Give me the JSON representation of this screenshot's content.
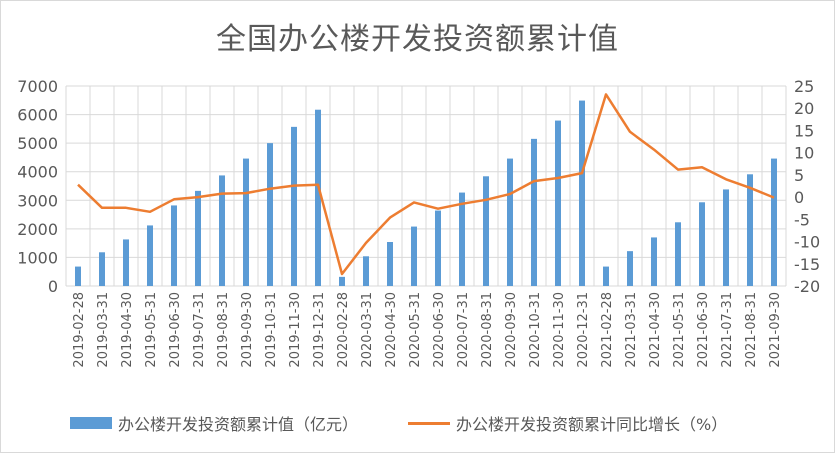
{
  "title": "全国办公楼开发投资额累计值",
  "colors": {
    "bar": "#5b9bd5",
    "line": "#ed7d31",
    "grid": "#d9d9d9",
    "axis_text": "#595959"
  },
  "legend": {
    "bar_label": "办公楼开发投资额累计值（亿元）",
    "line_label": "办公楼开发投资额累计同比增长（%）"
  },
  "chart_data": {
    "type": "bar+line",
    "title": "全国办公楼开发投资额累计值",
    "categories": [
      "2019-02-28",
      "2019-03-31",
      "2019-04-30",
      "2019-05-31",
      "2019-06-30",
      "2019-07-31",
      "2019-08-31",
      "2019-09-30",
      "2019-10-31",
      "2019-11-30",
      "2019-12-31",
      "2020-02-28",
      "2020-03-31",
      "2020-04-30",
      "2020-05-31",
      "2020-06-30",
      "2020-07-31",
      "2020-08-31",
      "2020-09-30",
      "2020-10-31",
      "2020-11-30",
      "2020-12-31",
      "2021-02-28",
      "2021-03-31",
      "2021-04-30",
      "2021-05-31",
      "2021-06-30",
      "2021-07-31",
      "2021-08-31",
      "2021-09-30"
    ],
    "series": [
      {
        "name": "办公楼开发投资额累计值（亿元）",
        "type": "bar",
        "axis": "left",
        "values": [
          680,
          1180,
          1630,
          2120,
          2820,
          3330,
          3870,
          4460,
          5000,
          5570,
          6170,
          320,
          1040,
          1540,
          2080,
          2640,
          3270,
          3840,
          4460,
          5150,
          5790,
          6490,
          680,
          1220,
          1700,
          2230,
          2930,
          3380,
          3910,
          4460
        ]
      },
      {
        "name": "办公楼开发投资额累计同比增长（%）",
        "type": "line",
        "axis": "right",
        "values": [
          2.8,
          -2.4,
          -2.4,
          -3.3,
          -0.5,
          0.0,
          0.8,
          0.9,
          1.9,
          2.6,
          2.8,
          -17.3,
          -10.3,
          -4.6,
          -1.2,
          -2.6,
          -1.5,
          -0.6,
          0.7,
          3.6,
          4.3,
          5.4,
          23.1,
          14.7,
          10.7,
          6.2,
          6.7,
          4.0,
          2.1,
          -0.1
        ]
      }
    ],
    "y_left": {
      "lim": [
        0,
        7000
      ],
      "ticks": [
        0,
        1000,
        2000,
        3000,
        4000,
        5000,
        6000,
        7000
      ]
    },
    "y_right": {
      "lim": [
        -20,
        25
      ],
      "ticks": [
        -20,
        -15,
        -10,
        -5,
        0,
        5,
        10,
        15,
        20,
        25
      ]
    },
    "grid": true,
    "legend_position": "bottom"
  }
}
